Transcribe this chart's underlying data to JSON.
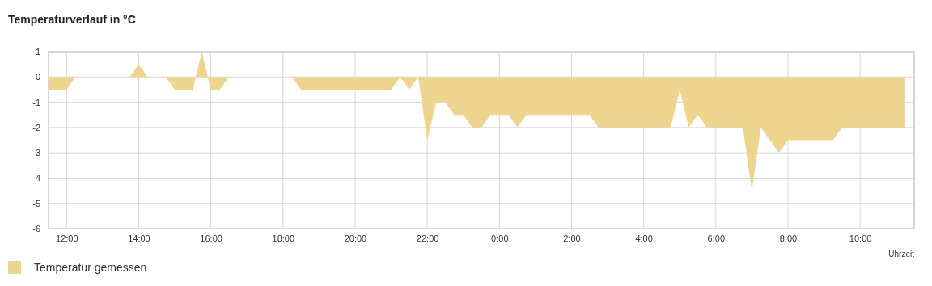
{
  "chart_data": {
    "type": "area",
    "title": "Temperaturverlauf in °C",
    "xlabel": "Uhrzeit",
    "x": [
      "2000-01-01T11:30",
      "2000-01-01T12:00",
      "2000-01-01T12:15",
      "2000-01-01T13:45",
      "2000-01-01T14:00",
      "2000-01-01T14:15",
      "2000-01-01T14:45",
      "2000-01-01T15:00",
      "2000-01-01T15:30",
      "2000-01-01T15:45",
      "2000-01-01T16:00",
      "2000-01-01T16:15",
      "2000-01-01T16:30",
      "2000-01-01T18:15",
      "2000-01-01T18:30",
      "2000-01-01T21:00",
      "2000-01-01T21:15",
      "2000-01-01T21:30",
      "2000-01-01T21:45",
      "2000-01-01T22:00",
      "2000-01-01T22:15",
      "2000-01-01T22:30",
      "2000-01-01T22:45",
      "2000-01-01T23:00",
      "2000-01-01T23:15",
      "2000-01-01T23:30",
      "2000-01-01T23:45",
      "2000-01-02T00:15",
      "2000-01-02T00:30",
      "2000-01-02T00:45",
      "2000-01-02T02:30",
      "2000-01-02T02:45",
      "2000-01-02T04:45",
      "2000-01-02T05:00",
      "2000-01-02T05:15",
      "2000-01-02T05:30",
      "2000-01-02T05:45",
      "2000-01-02T06:45",
      "2000-01-02T07:00",
      "2000-01-02T07:15",
      "2000-01-02T07:45",
      "2000-01-02T08:00",
      "2000-01-02T09:15",
      "2000-01-02T09:30",
      "2000-01-02T11:15"
    ],
    "series": [
      {
        "name": "Temperatur gemessen",
        "color": "#edd48f",
        "values": [
          -0.5,
          -0.5,
          0,
          0,
          0.5,
          0,
          0,
          -0.5,
          -0.5,
          1,
          -0.5,
          -0.5,
          0,
          0,
          -0.5,
          -0.5,
          0,
          -0.5,
          0,
          -2.5,
          -1,
          -1,
          -1.5,
          -1.5,
          -2,
          -2,
          -1.5,
          -1.5,
          -2,
          -1.5,
          -1.5,
          -2,
          -2,
          -0.5,
          -2,
          -1.5,
          -2,
          -2,
          -4.5,
          -2,
          -3,
          -2.5,
          -2.5,
          -2,
          -2
        ]
      }
    ],
    "xlim": [
      "2000-01-01T11:30",
      "2000-01-02T11:30"
    ],
    "xticks": [
      {
        "value": "2000-01-01T12:00",
        "label": "12:00"
      },
      {
        "value": "2000-01-01T14:00",
        "label": "14:00"
      },
      {
        "value": "2000-01-01T16:00",
        "label": "16:00"
      },
      {
        "value": "2000-01-01T18:00",
        "label": "18:00"
      },
      {
        "value": "2000-01-01T20:00",
        "label": "20:00"
      },
      {
        "value": "2000-01-01T22:00",
        "label": "22:00"
      },
      {
        "value": "2000-01-02T00:00",
        "label": "0:00"
      },
      {
        "value": "2000-01-02T02:00",
        "label": "2:00"
      },
      {
        "value": "2000-01-02T04:00",
        "label": "4:00"
      },
      {
        "value": "2000-01-02T06:00",
        "label": "6:00"
      },
      {
        "value": "2000-01-02T08:00",
        "label": "8:00"
      },
      {
        "value": "2000-01-02T10:00",
        "label": "10:00"
      }
    ],
    "ylim": [
      -6,
      1
    ],
    "yticks": [
      -6,
      -5,
      -4,
      -3,
      -2,
      -1,
      0,
      1
    ],
    "grid": true,
    "legend": "bottom left"
  }
}
